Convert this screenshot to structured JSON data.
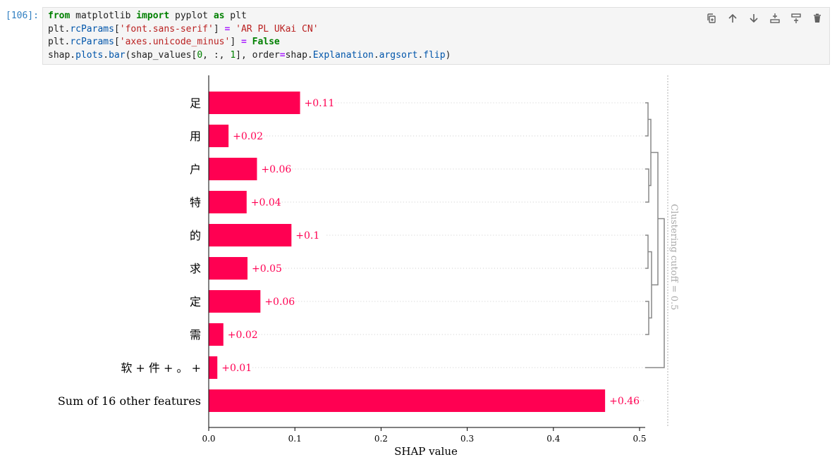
{
  "cell": {
    "prompt": "[106]:",
    "code": {
      "l1": {
        "from": "from",
        "mod": " matplotlib ",
        "import": "import",
        "name": " pyplot ",
        "as": "as",
        "alias": " plt"
      },
      "l2": {
        "obj": "plt.",
        "attr": "rcParams",
        "b1": "[",
        "key": "'font.sans-serif'",
        "b2": "] ",
        "eq": "=",
        "sp": " ",
        "val": "'AR PL UKai CN'"
      },
      "l3": {
        "obj": "plt.",
        "attr": "rcParams",
        "b1": "[",
        "key": "'axes.unicode_minus'",
        "b2": "] ",
        "eq": "=",
        "sp": " ",
        "val": "False"
      },
      "l4": {
        "obj": "shap.",
        "attr": "plots",
        "dot1": ".",
        "attr2": "bar",
        "p1": "(shap_values[",
        "n0": "0",
        "mid": ", :, ",
        "n1": "1",
        "p2": "], order",
        "eq": "=",
        "obj2": "shap.",
        "attr3": "Explanation",
        "dot2": ".",
        "attr4": "argsort",
        "dot3": ".",
        "attr5": "flip",
        "p3": ")"
      }
    },
    "toolbar_icons": [
      "copy-icon",
      "arrow-up-icon",
      "arrow-down-icon",
      "insert-above-icon",
      "insert-below-icon",
      "delete-icon"
    ]
  },
  "chart_data": {
    "type": "bar",
    "orientation": "horizontal",
    "categories": [
      "足",
      "用",
      "户",
      "特",
      "的",
      "求",
      "定",
      "需",
      "软 + 件 + 。 +",
      "Sum of 16 other features"
    ],
    "values": [
      0.106,
      0.023,
      0.056,
      0.044,
      0.096,
      0.045,
      0.06,
      0.017,
      0.01,
      0.46
    ],
    "value_labels": [
      "+0.11",
      "+0.02",
      "+0.06",
      "+0.04",
      "+0.1",
      "+0.05",
      "+0.06",
      "+0.02",
      "+0.01",
      "+0.46"
    ],
    "xlabel": "SHAP value",
    "xticks": [
      0.0,
      0.1,
      0.2,
      0.3,
      0.4,
      0.5
    ],
    "xtick_labels": [
      "0.0",
      "0.1",
      "0.2",
      "0.3",
      "0.4",
      "0.5"
    ],
    "xlim": [
      0,
      0.5
    ],
    "bar_color": "#ff0052",
    "label_color": "#ff0052",
    "dendrogram_color": "#888888",
    "cutoff_label": "Clustering cutoff = 0.5",
    "grid": false
  }
}
